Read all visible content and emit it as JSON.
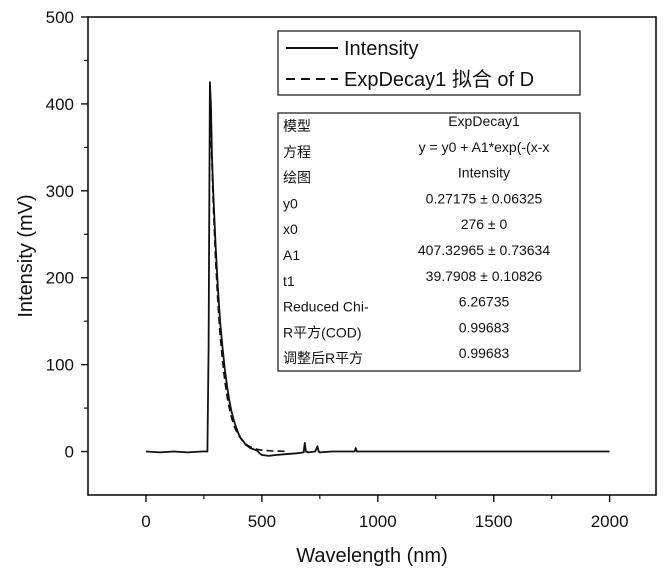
{
  "chart_data": {
    "type": "line",
    "xlabel": "Wavelength (nm)",
    "ylabel": "Intensity (mV)",
    "xlim": [
      -250,
      2200
    ],
    "ylim": [
      -50,
      500
    ],
    "xticks": [
      0,
      500,
      1000,
      1500,
      2000
    ],
    "xtick_labels": [
      "0",
      "500",
      "1000",
      "1500",
      "2000"
    ],
    "yticks": [
      0,
      100,
      200,
      300,
      400,
      500
    ],
    "ytick_labels": [
      "0",
      "100",
      "200",
      "300",
      "400",
      "500"
    ],
    "grid": false,
    "legend_position": "top-right",
    "series": [
      {
        "name": "Intensity",
        "style": "solid",
        "x": [
          0,
          60,
          120,
          180,
          240,
          265,
          270,
          276,
          280,
          285,
          290,
          300,
          310,
          320,
          330,
          340,
          350,
          360,
          370,
          380,
          390,
          400,
          410,
          420,
          430,
          440,
          450,
          460,
          470,
          480,
          490,
          500,
          530,
          560,
          600,
          650,
          680,
          685,
          690,
          700,
          730,
          740,
          745,
          750,
          800,
          900,
          905,
          910,
          1000,
          1200,
          1400,
          1600,
          1800,
          2000
        ],
        "y": [
          0,
          -1,
          0,
          -1,
          0,
          0,
          120,
          425,
          400,
          340,
          300,
          240,
          190,
          150,
          120,
          95,
          75,
          58,
          45,
          35,
          27,
          20,
          15,
          12,
          8,
          6,
          4,
          3,
          2,
          1,
          -2,
          -4,
          -5,
          -4,
          -3,
          -2,
          -1,
          10,
          0,
          -1,
          0,
          6,
          0,
          -1,
          0,
          0,
          4,
          0,
          0,
          0,
          0,
          0,
          0,
          0
        ]
      },
      {
        "name": "ExpDecay1 拟合 of D",
        "style": "dashed",
        "x": [
          276,
          280,
          290,
          300,
          310,
          320,
          330,
          340,
          350,
          360,
          370,
          380,
          390,
          400,
          420,
          440,
          460,
          480,
          500,
          550,
          600
        ],
        "y": [
          407.6,
          368.6,
          286.4,
          222.5,
          172.9,
          134.4,
          104.5,
          81.2,
          63.2,
          49.2,
          38.3,
          29.8,
          23.3,
          18.2,
          11.1,
          6.8,
          4.2,
          2.6,
          1.6,
          0.6,
          0.3
        ]
      }
    ]
  },
  "fit_table": {
    "rows": [
      {
        "label": "模型",
        "value": "ExpDecay1"
      },
      {
        "label": "方程",
        "value": "y = y0 + A1*exp(-(x-x"
      },
      {
        "label": "绘图",
        "value": "Intensity"
      },
      {
        "label": "y0",
        "value": "0.27175 ± 0.06325"
      },
      {
        "label": "x0",
        "value": "276 ± 0"
      },
      {
        "label": "A1",
        "value": "407.32965 ± 0.73634"
      },
      {
        "label": "t1",
        "value": "39.7908 ± 0.10826"
      },
      {
        "label": "Reduced Chi-",
        "value": "6.26735"
      },
      {
        "label": "R平方(COD)",
        "value": "0.99683"
      },
      {
        "label": "调整后R平方",
        "value": "0.99683"
      }
    ]
  }
}
